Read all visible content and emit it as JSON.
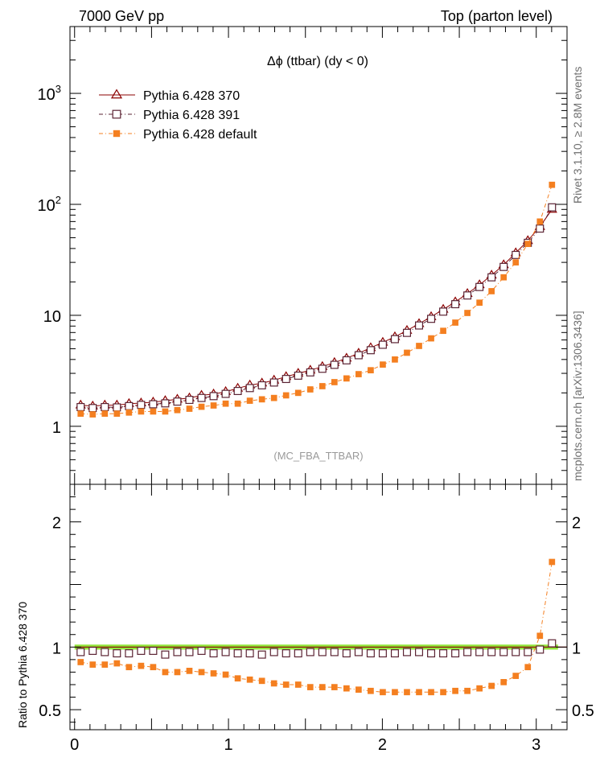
{
  "header": {
    "left": "7000 GeV pp",
    "right": "Top (parton level)"
  },
  "side_labels": {
    "rivet": "Rivet 3.1.10, ≥ 2.8M events",
    "mcplots": "mcplots.cern.ch [arXiv:1306.3436]"
  },
  "chart_data": [
    {
      "type": "scatter",
      "panel": "main",
      "title": "Δϕ (ttbar) (dy < 0)",
      "watermark": "(MC_FBA_TTBAR)",
      "yscale": "log",
      "xlim": [
        -0.03,
        3.2
      ],
      "ylim": [
        0.3,
        4000
      ],
      "yticks": [
        {
          "value": 1,
          "label": "1"
        },
        {
          "value": 10,
          "label": "10"
        },
        {
          "value": 100,
          "label": "10",
          "sup": "2"
        },
        {
          "value": 1000,
          "label": "10",
          "sup": "3"
        }
      ],
      "legend_position": "top-left",
      "x": [
        0.0393,
        0.1178,
        0.1963,
        0.2749,
        0.3534,
        0.432,
        0.5105,
        0.589,
        0.6676,
        0.7461,
        0.8247,
        0.9032,
        0.9817,
        1.0603,
        1.1388,
        1.2174,
        1.2959,
        1.3744,
        1.453,
        1.5315,
        1.6101,
        1.6886,
        1.7671,
        1.8457,
        1.9242,
        2.0028,
        2.0813,
        2.1598,
        2.2384,
        2.3169,
        2.3955,
        2.474,
        2.5525,
        2.6311,
        2.7096,
        2.7882,
        2.8667,
        2.9452,
        3.0238,
        3.1023
      ],
      "series": [
        {
          "name": "Pythia 6.428 370",
          "color": "#8b0000",
          "marker": "triangle-open",
          "line": "solid",
          "values": [
            1.55,
            1.52,
            1.55,
            1.55,
            1.6,
            1.62,
            1.65,
            1.7,
            1.75,
            1.8,
            1.9,
            1.95,
            2.05,
            2.2,
            2.35,
            2.45,
            2.6,
            2.8,
            3.0,
            3.2,
            3.45,
            3.75,
            4.1,
            4.55,
            5.1,
            5.7,
            6.4,
            7.3,
            8.4,
            9.7,
            11.3,
            13.2,
            15.7,
            18.8,
            23.0,
            28.5,
            36.5,
            47.0,
            63.0,
            90.0
          ]
        },
        {
          "name": "Pythia 6.428 391",
          "color": "#5b2333",
          "marker": "square-open",
          "line": "dash-dot",
          "values": [
            1.49,
            1.46,
            1.49,
            1.48,
            1.52,
            1.56,
            1.58,
            1.61,
            1.67,
            1.73,
            1.8,
            1.87,
            1.96,
            2.08,
            2.21,
            2.34,
            2.48,
            2.67,
            2.86,
            3.06,
            3.3,
            3.58,
            3.93,
            4.37,
            4.85,
            5.43,
            6.1,
            6.95,
            8.1,
            9.3,
            10.8,
            12.6,
            15.1,
            18.0,
            22.0,
            27.3,
            35.0,
            45.0,
            60.5,
            94.0
          ]
        },
        {
          "name": "Pythia 6.428 default",
          "color": "#f47f20",
          "marker": "square-filled",
          "line": "dash-dot",
          "values": [
            1.3,
            1.28,
            1.3,
            1.3,
            1.33,
            1.36,
            1.36,
            1.36,
            1.4,
            1.44,
            1.5,
            1.54,
            1.6,
            1.6,
            1.7,
            1.75,
            1.8,
            1.9,
            2.0,
            2.15,
            2.3,
            2.5,
            2.7,
            2.95,
            3.2,
            3.6,
            4.0,
            4.6,
            5.3,
            6.2,
            7.25,
            8.6,
            10.5,
            13.0,
            16.5,
            22.0,
            30.0,
            44.0,
            70.0,
            150.0
          ]
        }
      ],
      "legend": [
        {
          "label": "Pythia 6.428 370"
        },
        {
          "label": "Pythia 6.428 391"
        },
        {
          "label": "Pythia 6.428 default"
        }
      ]
    },
    {
      "type": "scatter",
      "panel": "ratio",
      "ylabel": "Ratio to Pythia 6.428 370",
      "xlim": [
        -0.03,
        3.2
      ],
      "ylim": [
        0.34,
        2.3
      ],
      "xticks": [
        {
          "value": 0,
          "label": "0"
        },
        {
          "value": 1,
          "label": "1"
        },
        {
          "value": 2,
          "label": "2"
        },
        {
          "value": 3,
          "label": "3"
        }
      ],
      "yticks": [
        {
          "value": 0.5,
          "label": "0.5"
        },
        {
          "value": 1,
          "label": "1"
        },
        {
          "value": 2,
          "label": "2"
        }
      ],
      "band": {
        "color": "#7fe31a",
        "low": 0.98,
        "high": 1.02
      },
      "x": [
        0.0393,
        0.1178,
        0.1963,
        0.2749,
        0.3534,
        0.432,
        0.5105,
        0.589,
        0.6676,
        0.7461,
        0.8247,
        0.9032,
        0.9817,
        1.0603,
        1.1388,
        1.2174,
        1.2959,
        1.3744,
        1.453,
        1.5315,
        1.6101,
        1.6886,
        1.7671,
        1.8457,
        1.9242,
        2.0028,
        2.0813,
        2.1598,
        2.2384,
        2.3169,
        2.3955,
        2.474,
        2.5525,
        2.6311,
        2.7096,
        2.7882,
        2.8667,
        2.9452,
        3.0238,
        3.1023
      ],
      "series": [
        {
          "name": "Pythia 6.428 391",
          "color": "#5b2333",
          "marker": "square-open",
          "values": [
            0.96,
            0.97,
            0.96,
            0.95,
            0.95,
            0.97,
            0.97,
            0.94,
            0.96,
            0.96,
            0.97,
            0.95,
            0.96,
            0.95,
            0.95,
            0.94,
            0.96,
            0.95,
            0.95,
            0.96,
            0.96,
            0.96,
            0.95,
            0.96,
            0.95,
            0.95,
            0.95,
            0.96,
            0.96,
            0.95,
            0.95,
            0.95,
            0.96,
            0.96,
            0.96,
            0.96,
            0.96,
            0.96,
            0.98,
            1.03
          ]
        },
        {
          "name": "Pythia 6.428 default",
          "color": "#f47f20",
          "marker": "square-filled",
          "values": [
            0.88,
            0.86,
            0.86,
            0.87,
            0.84,
            0.85,
            0.84,
            0.8,
            0.8,
            0.81,
            0.8,
            0.79,
            0.78,
            0.75,
            0.74,
            0.73,
            0.71,
            0.7,
            0.7,
            0.68,
            0.68,
            0.68,
            0.67,
            0.66,
            0.65,
            0.64,
            0.64,
            0.64,
            0.64,
            0.64,
            0.64,
            0.65,
            0.65,
            0.67,
            0.69,
            0.72,
            0.77,
            0.84,
            1.09,
            1.68
          ]
        }
      ]
    }
  ]
}
